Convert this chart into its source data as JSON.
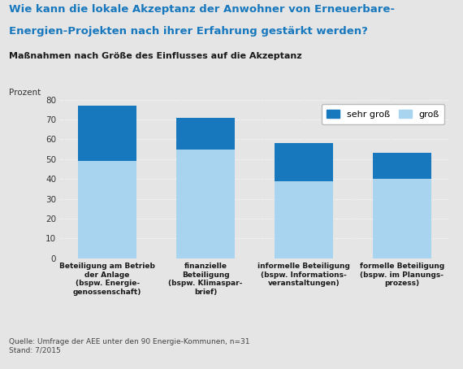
{
  "title_line1": "Wie kann die lokale Akzeptanz der Anwohner von Erneuerbare-",
  "title_line2": "Energien-Projekten nach ihrer Erfahrung gestärkt werden?",
  "subtitle": "Maßnahmen nach Größe des Einflusses auf die Akzeptanz",
  "ylabel": "Prozent",
  "ylim": [
    0,
    80
  ],
  "yticks": [
    0,
    10,
    20,
    30,
    40,
    50,
    60,
    70,
    80
  ],
  "categories": [
    "Beteiligung am Betrieb\nder Anlage\n(bspw. Energie-\ngenossenschaft)",
    "finanzielle\nBeteiligung\n(bspw. Klimaspar-\nbrief)",
    "informelle Beteiligung\n(bspw. Informations-\nveranstaltungen)",
    "formelle Beteiligung\n(bspw. im Planungs-\nprozess)"
  ],
  "sehr_gross": [
    28,
    16,
    19,
    13
  ],
  "gross": [
    49,
    55,
    39,
    40
  ],
  "color_sehr_gross": "#1878be",
  "color_gross": "#a8d4f0",
  "background_color": "#e5e5e5",
  "plot_background": "#e5e5e5",
  "legend_sehr_gross": "sehr groß",
  "legend_gross": "groß",
  "source_text": "Quelle: Umfrage der AEE unter den 90 Energie-Kommunen, n=31\nStand: 7/2015",
  "title_color": "#1878be",
  "subtitle_color": "#1a1a1a",
  "bar_width": 0.6
}
